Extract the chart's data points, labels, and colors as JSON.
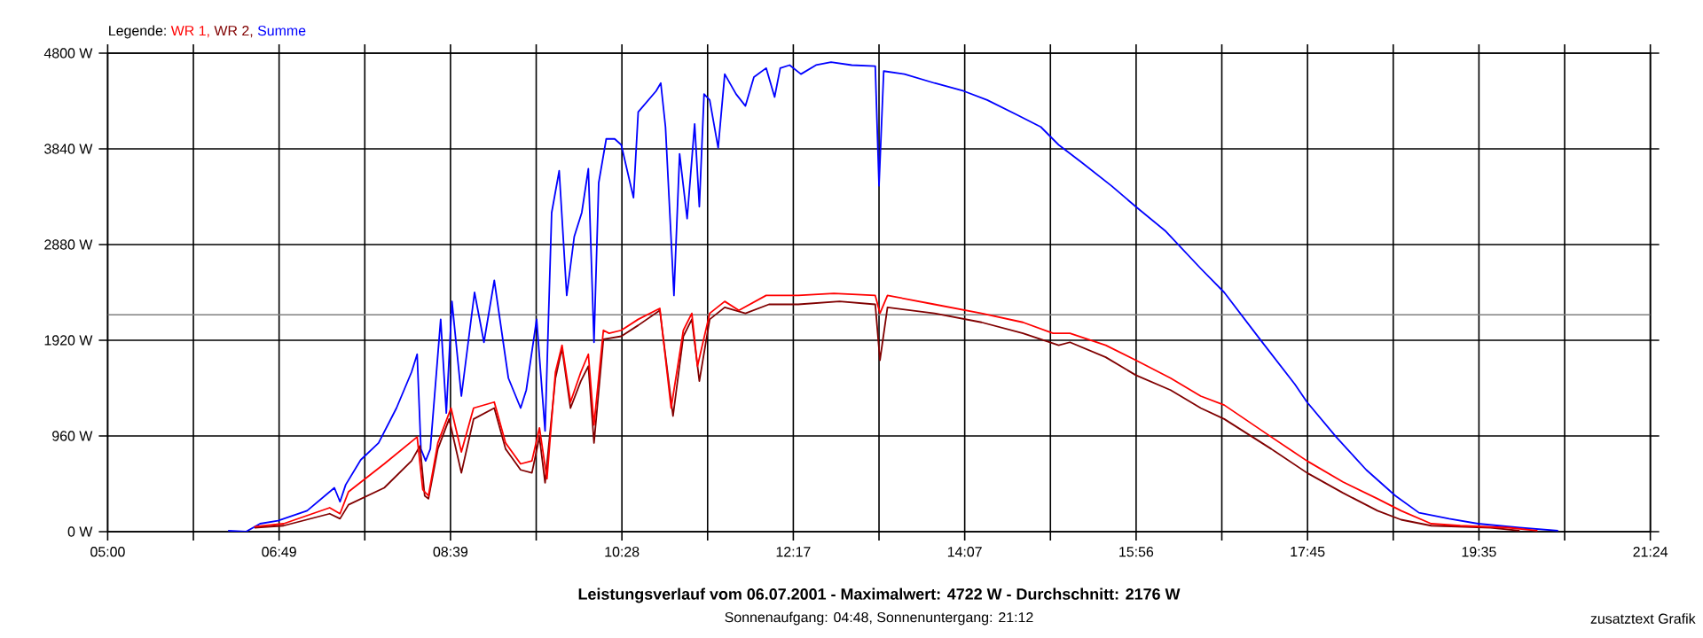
{
  "chart_data": {
    "type": "line",
    "title": "Leistungsverlauf vom 06.07.2001 - Maximalwert: 4722 W - Durchschnitt: 2176 W",
    "subtitle": "Sonnenaufgang: 04:48, Sonnenuntergang: 21:12",
    "legend_title": "Legende:",
    "annotations": [
      "zusatztext Grafik"
    ],
    "legend": "top left",
    "grid": true,
    "xlim": [
      5,
      21.4
    ],
    "ylim": [
      0,
      4800
    ],
    "xticks": [
      {
        "value": 5,
        "label": "05:00"
      },
      {
        "value": 5.9111,
        "label": null
      },
      {
        "value": 6.8222,
        "label": "06:49"
      },
      {
        "value": 7.7333,
        "label": null
      },
      {
        "value": 8.6444,
        "label": "08:39"
      },
      {
        "value": 9.5556,
        "label": null
      },
      {
        "value": 10.4667,
        "label": "10:28"
      },
      {
        "value": 11.3778,
        "label": null
      },
      {
        "value": 12.2889,
        "label": "12:17"
      },
      {
        "value": 13.2,
        "label": null
      },
      {
        "value": 14.1111,
        "label": "14:07"
      },
      {
        "value": 15.0222,
        "label": null
      },
      {
        "value": 15.9333,
        "label": "15:56"
      },
      {
        "value": 16.8444,
        "label": null
      },
      {
        "value": 17.7556,
        "label": "17:45"
      },
      {
        "value": 18.6667,
        "label": null
      },
      {
        "value": 19.5778,
        "label": "19:35"
      },
      {
        "value": 20.4889,
        "label": null
      },
      {
        "value": 21.4,
        "label": "21:24"
      }
    ],
    "yticks": [
      {
        "value": 0,
        "label": "0 W"
      },
      {
        "value": 960,
        "label": "960 W"
      },
      {
        "value": 1920,
        "label": "1920 W"
      },
      {
        "value": 2880,
        "label": "2880 W"
      },
      {
        "value": 3840,
        "label": "3840 W"
      },
      {
        "value": 4800,
        "label": "4800 W"
      }
    ],
    "ref_lines": [
      {
        "axis": "y",
        "value": 2176,
        "color": "#808080"
      }
    ],
    "series": [
      {
        "name": "WR 1,",
        "color": "#ff0000",
        "x": [
          6.56,
          6.87,
          7.36,
          7.47,
          7.56,
          7.94,
          8.29,
          8.35,
          8.41,
          8.51,
          8.65,
          8.76,
          8.89,
          9.11,
          9.23,
          9.39,
          9.51,
          9.59,
          9.67,
          9.76,
          9.83,
          9.92,
          10.03,
          10.11,
          10.17,
          10.27,
          10.33,
          10.46,
          10.64,
          10.87,
          10.99,
          11.12,
          11.21,
          11.27,
          11.4,
          11.56,
          11.71,
          12.0,
          12.34,
          12.72,
          13.16,
          13.21,
          13.29,
          13.79,
          14.29,
          14.73,
          15.05,
          15.23,
          15.61,
          15.93,
          16.3,
          16.62,
          16.87,
          17.37,
          17.75,
          18.13,
          18.5,
          18.75,
          19.07,
          19.38,
          19.89,
          20.2
        ],
        "values": [
          50,
          80,
          240,
          180,
          400,
          680,
          950,
          420,
          360,
          890,
          1240,
          800,
          1240,
          1300,
          890,
          680,
          710,
          1040,
          530,
          1600,
          1870,
          1300,
          1600,
          1780,
          1070,
          2020,
          1990,
          2020,
          2130,
          2240,
          1240,
          2020,
          2190,
          1660,
          2190,
          2310,
          2220,
          2370,
          2370,
          2390,
          2370,
          2190,
          2370,
          2280,
          2190,
          2100,
          1990,
          1990,
          1870,
          1720,
          1540,
          1360,
          1270,
          950,
          710,
          500,
          330,
          210,
          80,
          60,
          40,
          10
        ]
      },
      {
        "name": "WR 2,",
        "color": "#800000",
        "x": [
          6.56,
          6.87,
          7.36,
          7.47,
          7.56,
          7.94,
          8.23,
          8.32,
          8.37,
          8.41,
          8.51,
          8.63,
          8.76,
          8.89,
          9.11,
          9.23,
          9.39,
          9.51,
          9.59,
          9.65,
          9.76,
          9.83,
          9.92,
          10.03,
          10.11,
          10.17,
          10.27,
          10.46,
          10.64,
          10.87,
          11.01,
          11.12,
          11.21,
          11.29,
          11.4,
          11.56,
          11.78,
          12.03,
          12.34,
          12.78,
          13.16,
          13.21,
          13.29,
          13.79,
          14.29,
          14.73,
          15.11,
          15.23,
          15.61,
          15.93,
          16.3,
          16.62,
          16.87,
          17.37,
          17.75,
          18.13,
          18.5,
          18.75,
          19.07,
          19.7,
          20.01
        ],
        "values": [
          40,
          60,
          180,
          130,
          270,
          440,
          710,
          860,
          360,
          330,
          830,
          1130,
          590,
          1130,
          1240,
          830,
          620,
          590,
          950,
          490,
          1540,
          1840,
          1240,
          1510,
          1660,
          890,
          1930,
          1960,
          2070,
          2220,
          1160,
          1960,
          2130,
          1510,
          2130,
          2250,
          2190,
          2280,
          2280,
          2310,
          2280,
          1720,
          2250,
          2190,
          2100,
          1990,
          1870,
          1900,
          1750,
          1570,
          1420,
          1240,
          1130,
          830,
          590,
          390,
          210,
          120,
          60,
          40,
          10
        ]
      },
      {
        "name": "Summe",
        "color": "#0000ff",
        "x": [
          6.28,
          6.47,
          6.62,
          6.81,
          7.12,
          7.41,
          7.47,
          7.53,
          7.69,
          7.88,
          8.07,
          8.23,
          8.29,
          8.33,
          8.38,
          8.43,
          8.54,
          8.6,
          8.66,
          8.76,
          8.9,
          9.0,
          9.11,
          9.26,
          9.39,
          9.45,
          9.56,
          9.65,
          9.72,
          9.8,
          9.88,
          9.96,
          10.04,
          10.11,
          10.17,
          10.22,
          10.3,
          10.39,
          10.46,
          10.59,
          10.64,
          10.83,
          10.88,
          10.93,
          11.02,
          11.08,
          11.16,
          11.24,
          11.29,
          11.34,
          11.4,
          11.49,
          11.56,
          11.68,
          11.78,
          11.87,
          12.0,
          12.09,
          12.15,
          12.25,
          12.37,
          12.53,
          12.69,
          12.91,
          13.16,
          13.2,
          13.25,
          13.47,
          13.79,
          14.1,
          14.35,
          14.67,
          14.92,
          15.11,
          15.36,
          15.67,
          15.93,
          16.24,
          16.62,
          16.87,
          17.25,
          17.62,
          17.75,
          18.06,
          18.38,
          18.69,
          18.94,
          19.26,
          19.57,
          20.01,
          20.42
        ],
        "values": [
          10,
          0,
          80,
          110,
          210,
          440,
          300,
          470,
          720,
          890,
          1240,
          1600,
          1780,
          830,
          710,
          830,
          2130,
          1190,
          2310,
          1360,
          2400,
          1900,
          2520,
          1540,
          1240,
          1420,
          2130,
          1010,
          3200,
          3620,
          2370,
          2960,
          3200,
          3640,
          1900,
          3500,
          3940,
          3940,
          3880,
          3350,
          4210,
          4420,
          4500,
          4060,
          2370,
          3790,
          3140,
          4090,
          3260,
          4390,
          4330,
          3850,
          4590,
          4390,
          4270,
          4560,
          4650,
          4360,
          4650,
          4680,
          4590,
          4680,
          4710,
          4680,
          4670,
          3470,
          4620,
          4590,
          4500,
          4420,
          4330,
          4180,
          4060,
          3880,
          3700,
          3470,
          3260,
          3020,
          2640,
          2400,
          1930,
          1480,
          1300,
          950,
          620,
          360,
          190,
          130,
          80,
          40,
          10
        ]
      }
    ]
  }
}
